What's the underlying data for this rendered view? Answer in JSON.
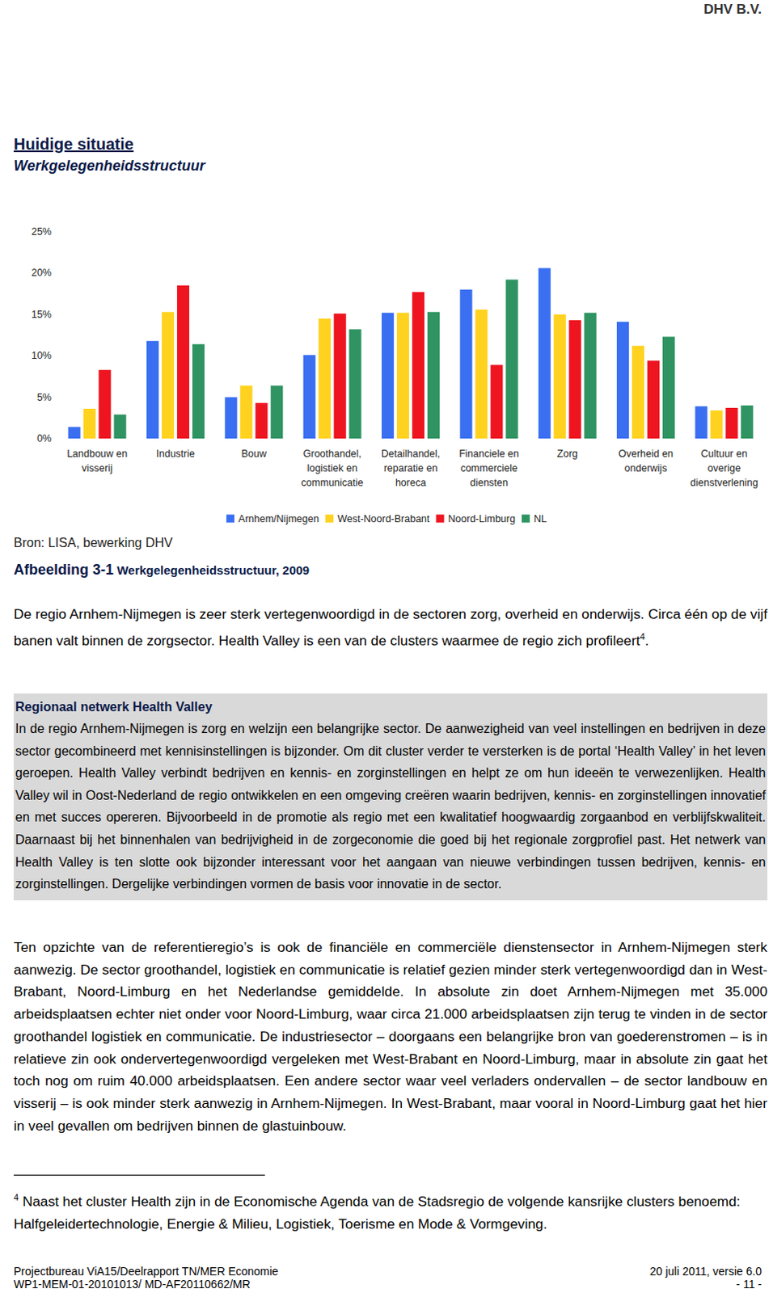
{
  "header": "DHV B.V.",
  "title": "Huidige situatie",
  "subtitle": "Werkgelegenheidsstructuur",
  "chart_data": {
    "type": "bar",
    "categories": [
      "Landbouw en\nvisserij",
      "Industrie",
      "Bouw",
      "Groothandel,\nlogistiek en\ncommunicatie",
      "Detailhandel,\nreparatie en\nhoreca",
      "Financiele en\ncommerciele\ndiensten",
      "Zorg",
      "Overheid en\nonderwijs",
      "Cultuur en\noverige\ndienstverlening"
    ],
    "series": [
      {
        "name": "Arnhem/Nijmegen",
        "color": "#3a6ff2",
        "values": [
          1.4,
          11.8,
          5.0,
          10.1,
          15.2,
          18.0,
          20.6,
          14.1,
          3.9
        ]
      },
      {
        "name": "West-Noord-Brabant",
        "color": "#ffd21f",
        "values": [
          3.6,
          15.3,
          6.4,
          14.5,
          15.2,
          15.6,
          15.0,
          11.2,
          3.4
        ]
      },
      {
        "name": "Noord-Limburg",
        "color": "#ee1520",
        "values": [
          8.3,
          18.5,
          4.3,
          15.1,
          17.7,
          8.9,
          14.3,
          9.4,
          3.7
        ]
      },
      {
        "name": "NL",
        "color": "#2f9462",
        "values": [
          2.9,
          11.4,
          6.4,
          13.2,
          15.3,
          19.2,
          15.2,
          12.3,
          4.0
        ]
      }
    ],
    "ylim": [
      0,
      25
    ],
    "yticks": [
      {
        "value": 0,
        "label": "0%"
      },
      {
        "value": 5,
        "label": "5%"
      },
      {
        "value": 10,
        "label": "10%"
      },
      {
        "value": 15,
        "label": "15%"
      },
      {
        "value": 20,
        "label": "20%"
      },
      {
        "value": 25,
        "label": "25%"
      }
    ],
    "grid": false,
    "legend": "bottom"
  },
  "source": "Bron: LISA, bewerking DHV",
  "caption": {
    "label": "Afbeelding 3-1",
    "text": "Werkgelegenheidsstructuur, 2009"
  },
  "paragraph1": {
    "before": "De regio Arnhem-Nijmegen is zeer sterk vertegenwoordigd in de sectoren zorg, overheid en onderwijs. Circa één op de vijf banen valt binnen de zorgsector. Health Valley is een van de clusters waarmee de regio zich profileert",
    "sup": "4",
    "after": "."
  },
  "box": {
    "title": "Regionaal netwerk Health Valley",
    "text": "In de regio Arnhem-Nijmegen is zorg en welzijn een belangrijke sector. De aanwezigheid van veel instellingen en bedrijven in deze sector gecombineerd met kennisinstellingen is bijzonder. Om dit cluster verder te versterken is de portal ‘Health Valley’ in het leven geroepen. Health Valley verbindt bedrijven en kennis- en zorginstellingen en helpt ze om hun ideeën te verwezenlijken. Health Valley wil in Oost-Nederland de regio ontwikkelen en een omgeving creëren waarin bedrijven, kennis- en zorginstellingen innovatief en met succes opereren. Bijvoorbeeld in de promotie als regio met een kwalitatief hoogwaardig zorgaanbod en verblijfskwaliteit. Daarnaast bij het binnenhalen van bedrijvigheid in de zorgeconomie die goed bij het regionale zorgprofiel past. Het netwerk van Health Valley is ten slotte ook bijzonder interessant voor het aangaan van nieuwe verbindingen tussen bedrijven, kennis- en zorginstellingen. Dergelijke verbindingen vormen de basis voor innovatie in de sector."
  },
  "paragraph2": "Ten opzichte van de referentieregio’s is ook de financiële en commerciële dienstensector in Arnhem-Nijmegen sterk aanwezig. De sector groothandel, logistiek en communicatie is relatief gezien minder sterk vertegenwoordigd dan in West-Brabant, Noord-Limburg en het Nederlandse gemiddelde. In absolute zin doet Arnhem-Nijmegen met 35.000 arbeidsplaatsen echter niet onder voor Noord-Limburg, waar circa 21.000 arbeidsplaatsen zijn terug te vinden in de sector groothandel logistiek en communicatie. De industriesector – doorgaans een belangrijke bron van goederenstromen – is in relatieve zin ook ondervertegenwoordigd vergeleken met West-Brabant en Noord-Limburg, maar in absolute zin gaat het toch nog om ruim 40.000 arbeidsplaatsen. Een andere sector waar veel verladers ondervallen – de sector landbouw en visserij – is ook minder sterk aanwezig in Arnhem-Nijmegen. In West-Brabant, maar vooral in Noord-Limburg gaat het hier in veel gevallen om bedrijven binnen de glastuinbouw.",
  "footnote": {
    "marker": "4",
    "text": "Naast het cluster Health zijn in de Economische Agenda van de Stadsregio de volgende kansrijke clusters benoemd: Halfgeleidertechnologie, Energie & Milieu, Logistiek, Toerisme en Mode & Vormgeving."
  },
  "footer": {
    "left": [
      "Projectbureau ViA15/Deelrapport TN/MER Economie",
      "WP1-MEM-01-20101013/ MD-AF20110662/MR"
    ],
    "right": [
      "20 juli 2011, versie 6.0",
      "- 11 -"
    ]
  }
}
